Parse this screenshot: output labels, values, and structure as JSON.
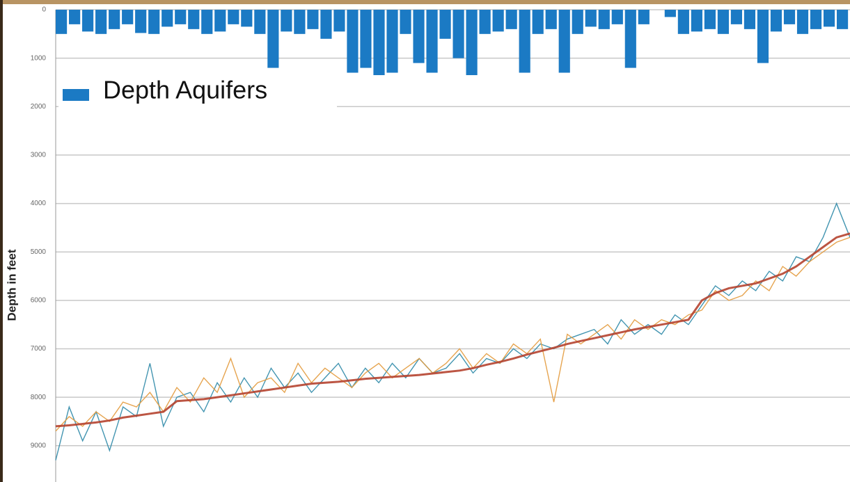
{
  "chart_data": {
    "type": "bar",
    "y_label": "Depth in feet",
    "ylim": [
      0,
      9750
    ],
    "y_inverted": true,
    "yticks": [
      0,
      1000,
      2000,
      3000,
      4000,
      5000,
      6000,
      7000,
      8000,
      9000
    ],
    "grid": true,
    "legend": "upper left",
    "series": [
      {
        "name": "Depth Aquifers",
        "type": "bar",
        "color": "#1b7ac4",
        "values": [
          500,
          300,
          450,
          500,
          400,
          300,
          480,
          500,
          350,
          300,
          400,
          500,
          450,
          300,
          350,
          500,
          1200,
          450,
          500,
          400,
          600,
          450,
          1300,
          1200,
          1350,
          1300,
          500,
          1100,
          1300,
          600,
          1000,
          1350,
          500,
          450,
          400,
          1300,
          500,
          400,
          1300,
          500,
          350,
          400,
          300,
          1200,
          300,
          0,
          150,
          500,
          450,
          400,
          500,
          300,
          400,
          1100,
          450,
          300,
          500,
          400,
          350,
          400
        ]
      },
      {
        "type": "line",
        "color": "#2f8aa8",
        "values": [
          9300,
          8200,
          8900,
          8300,
          9100,
          8200,
          8400,
          7300,
          8600,
          8000,
          7900,
          8300,
          7700,
          8100,
          7600,
          8000,
          7400,
          7800,
          7500,
          7900,
          7600,
          7300,
          7800,
          7400,
          7700,
          7300,
          7600,
          7200,
          7500,
          7400,
          7100,
          7500,
          7200,
          7300,
          7000,
          7200,
          6900,
          7000,
          6800,
          6700,
          6600,
          6900,
          6400,
          6700,
          6500,
          6700,
          6300,
          6500,
          6100,
          5700,
          5900,
          5600,
          5800,
          5400,
          5600,
          5100,
          5200,
          4700,
          4000,
          4700
        ]
      },
      {
        "type": "line",
        "color": "#e39a3c",
        "values": [
          8700,
          8400,
          8600,
          8300,
          8500,
          8100,
          8200,
          7900,
          8300,
          7800,
          8100,
          7600,
          7900,
          7200,
          8000,
          7700,
          7600,
          7900,
          7300,
          7700,
          7400,
          7600,
          7800,
          7500,
          7300,
          7600,
          7400,
          7200,
          7500,
          7300,
          7000,
          7400,
          7100,
          7300,
          6900,
          7100,
          6800,
          8100,
          6700,
          6900,
          6700,
          6500,
          6800,
          6400,
          6600,
          6400,
          6500,
          6300,
          6200,
          5800,
          6000,
          5900,
          5600,
          5800,
          5300,
          5500,
          5200,
          5000,
          4800,
          4700
        ]
      },
      {
        "type": "line",
        "color": "#b5432f",
        "values": [
          8600,
          8580,
          8550,
          8520,
          8480,
          8420,
          8380,
          8340,
          8300,
          8080,
          8060,
          8040,
          8000,
          7960,
          7920,
          7880,
          7840,
          7800,
          7760,
          7720,
          7700,
          7680,
          7650,
          7620,
          7600,
          7580,
          7560,
          7540,
          7510,
          7480,
          7450,
          7400,
          7330,
          7270,
          7200,
          7120,
          7050,
          6980,
          6900,
          6840,
          6780,
          6720,
          6660,
          6600,
          6550,
          6500,
          6450,
          6400,
          6000,
          5850,
          5750,
          5700,
          5650,
          5550,
          5450,
          5300,
          5100,
          4900,
          4700,
          4620
        ]
      }
    ]
  }
}
